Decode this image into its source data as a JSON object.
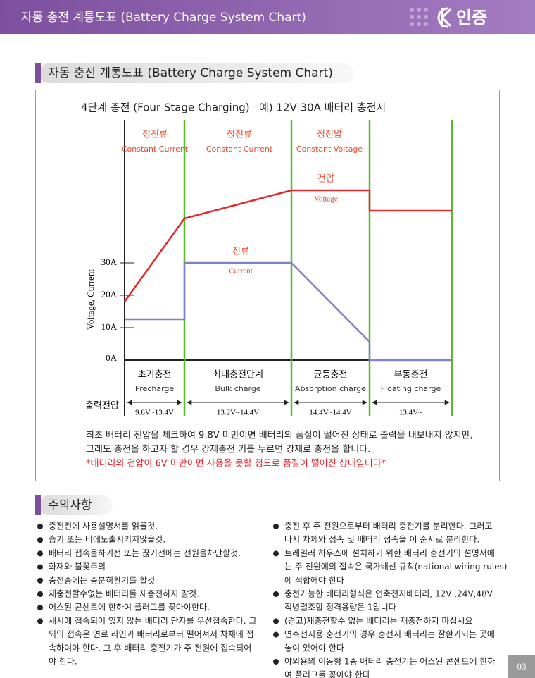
{
  "header": {
    "title": "자동 충전 계통도표 (Battery Charge System Chart)",
    "logo": "인증"
  },
  "section1": {
    "title": "자동 충전 계통도표 (Battery Charge System Chart)"
  },
  "diagram": {
    "caption": "4단계 충전 (Four Stage Charging)",
    "example": "예) 12V 30A 배터리 충전시",
    "y_axis_label": "Voltage, Current",
    "y_ticks": [
      "30A",
      "20A",
      "10A",
      "0A"
    ],
    "phases": [
      {
        "ko": "정전류",
        "en": "Constant Current"
      },
      {
        "ko": "정전류",
        "en": "Constant Current"
      },
      {
        "ko": "정전압",
        "en": "Constant Voltage"
      }
    ],
    "voltage_label": {
      "ko": "전압",
      "en": "Voltage"
    },
    "current_label": {
      "ko": "전류",
      "en": "Current"
    },
    "stages": [
      {
        "ko": "초기충전",
        "en": "Precharge",
        "range": "9.8V~13.4V"
      },
      {
        "ko": "최대충전단계",
        "en": "Bulk charge",
        "range": "13.2V~14.4V"
      },
      {
        "ko": "균등충전",
        "en": "Absorption charge",
        "range": "14.4V~14.4V"
      },
      {
        "ko": "부동충전",
        "en": "Floating charge",
        "range": "13.4V~"
      }
    ],
    "output_label": "출력전압"
  },
  "notes": [
    "최초 배터리 전압을 체크하여 9.8V 미만이면 배터리의 품질이 떨어진 상태로 출력을 내보내지 않지만,",
    "그래도 충전을 하고자 할 경우 강제충전 키를 누르면 강제로 충전을 합니다.",
    "*배터리의 전압이 6V 미만이면 사용을 못할 정도로 품질이 떨어진 상태입니다*"
  ],
  "section2": {
    "title": "주의사항"
  },
  "precautions": {
    "left": [
      [
        "충전전에 사용설명서를 읽을것."
      ],
      [
        "습기 또는 비에노출시키지않을것."
      ],
      [
        "배터리 접속을하기전 또는 끊기전에는 전원을차단할것."
      ],
      [
        "화재와 불꽃주의"
      ],
      [
        "충전중에는 충분히환기를 할것"
      ],
      [
        "재충전할수없는 배터리를 재충전하지 말것."
      ],
      [
        "어스된 콘센트에 한하여 플러그를 꽂아야한다."
      ],
      [
        "새시에 접속되어 있지 않는 배터리 단자를 우선접속한다. 그",
        "외의 접속은 연료 라인과 배터리로부터 떨어져서 차체에 접",
        "속하여야 한다. 그 후 배터리 충전기가 주 전원에 접속되어",
        "야 한다."
      ]
    ],
    "right": [
      [
        "충전 후 주 전원으로부터 배터리 충전기를 분리한다. 그러고",
        "나서 차체와 접속 및 배터리 접속을 이 순서로 분리한다."
      ],
      [
        "트레일러 하우스에 설치하기 위한 배터리 충전기의 설명서에",
        "는 주 전원에의 접속은 국가배선 규칙(national wiring rules)",
        "에 적합해야 한다"
      ],
      [
        "충전가능한 배터리형식은 연축전지배터리, 12V ,24V,48V",
        "직병렬조합 정격용량은 1입니다"
      ],
      [
        "(경고)재충전할수 없는 배터리는 재충전하지 마십시요"
      ],
      [
        "연축전지용 충전기의 경우 충전시 배터리는 잘환기되는 곳에",
        "놓여 있어야 한다"
      ],
      [
        "야외용의 이동형 1종 배터리 충전기는 어스된 콘센트에 한하",
        "여 플러그를 꽂아야 한다"
      ]
    ]
  },
  "page_number": "03"
}
